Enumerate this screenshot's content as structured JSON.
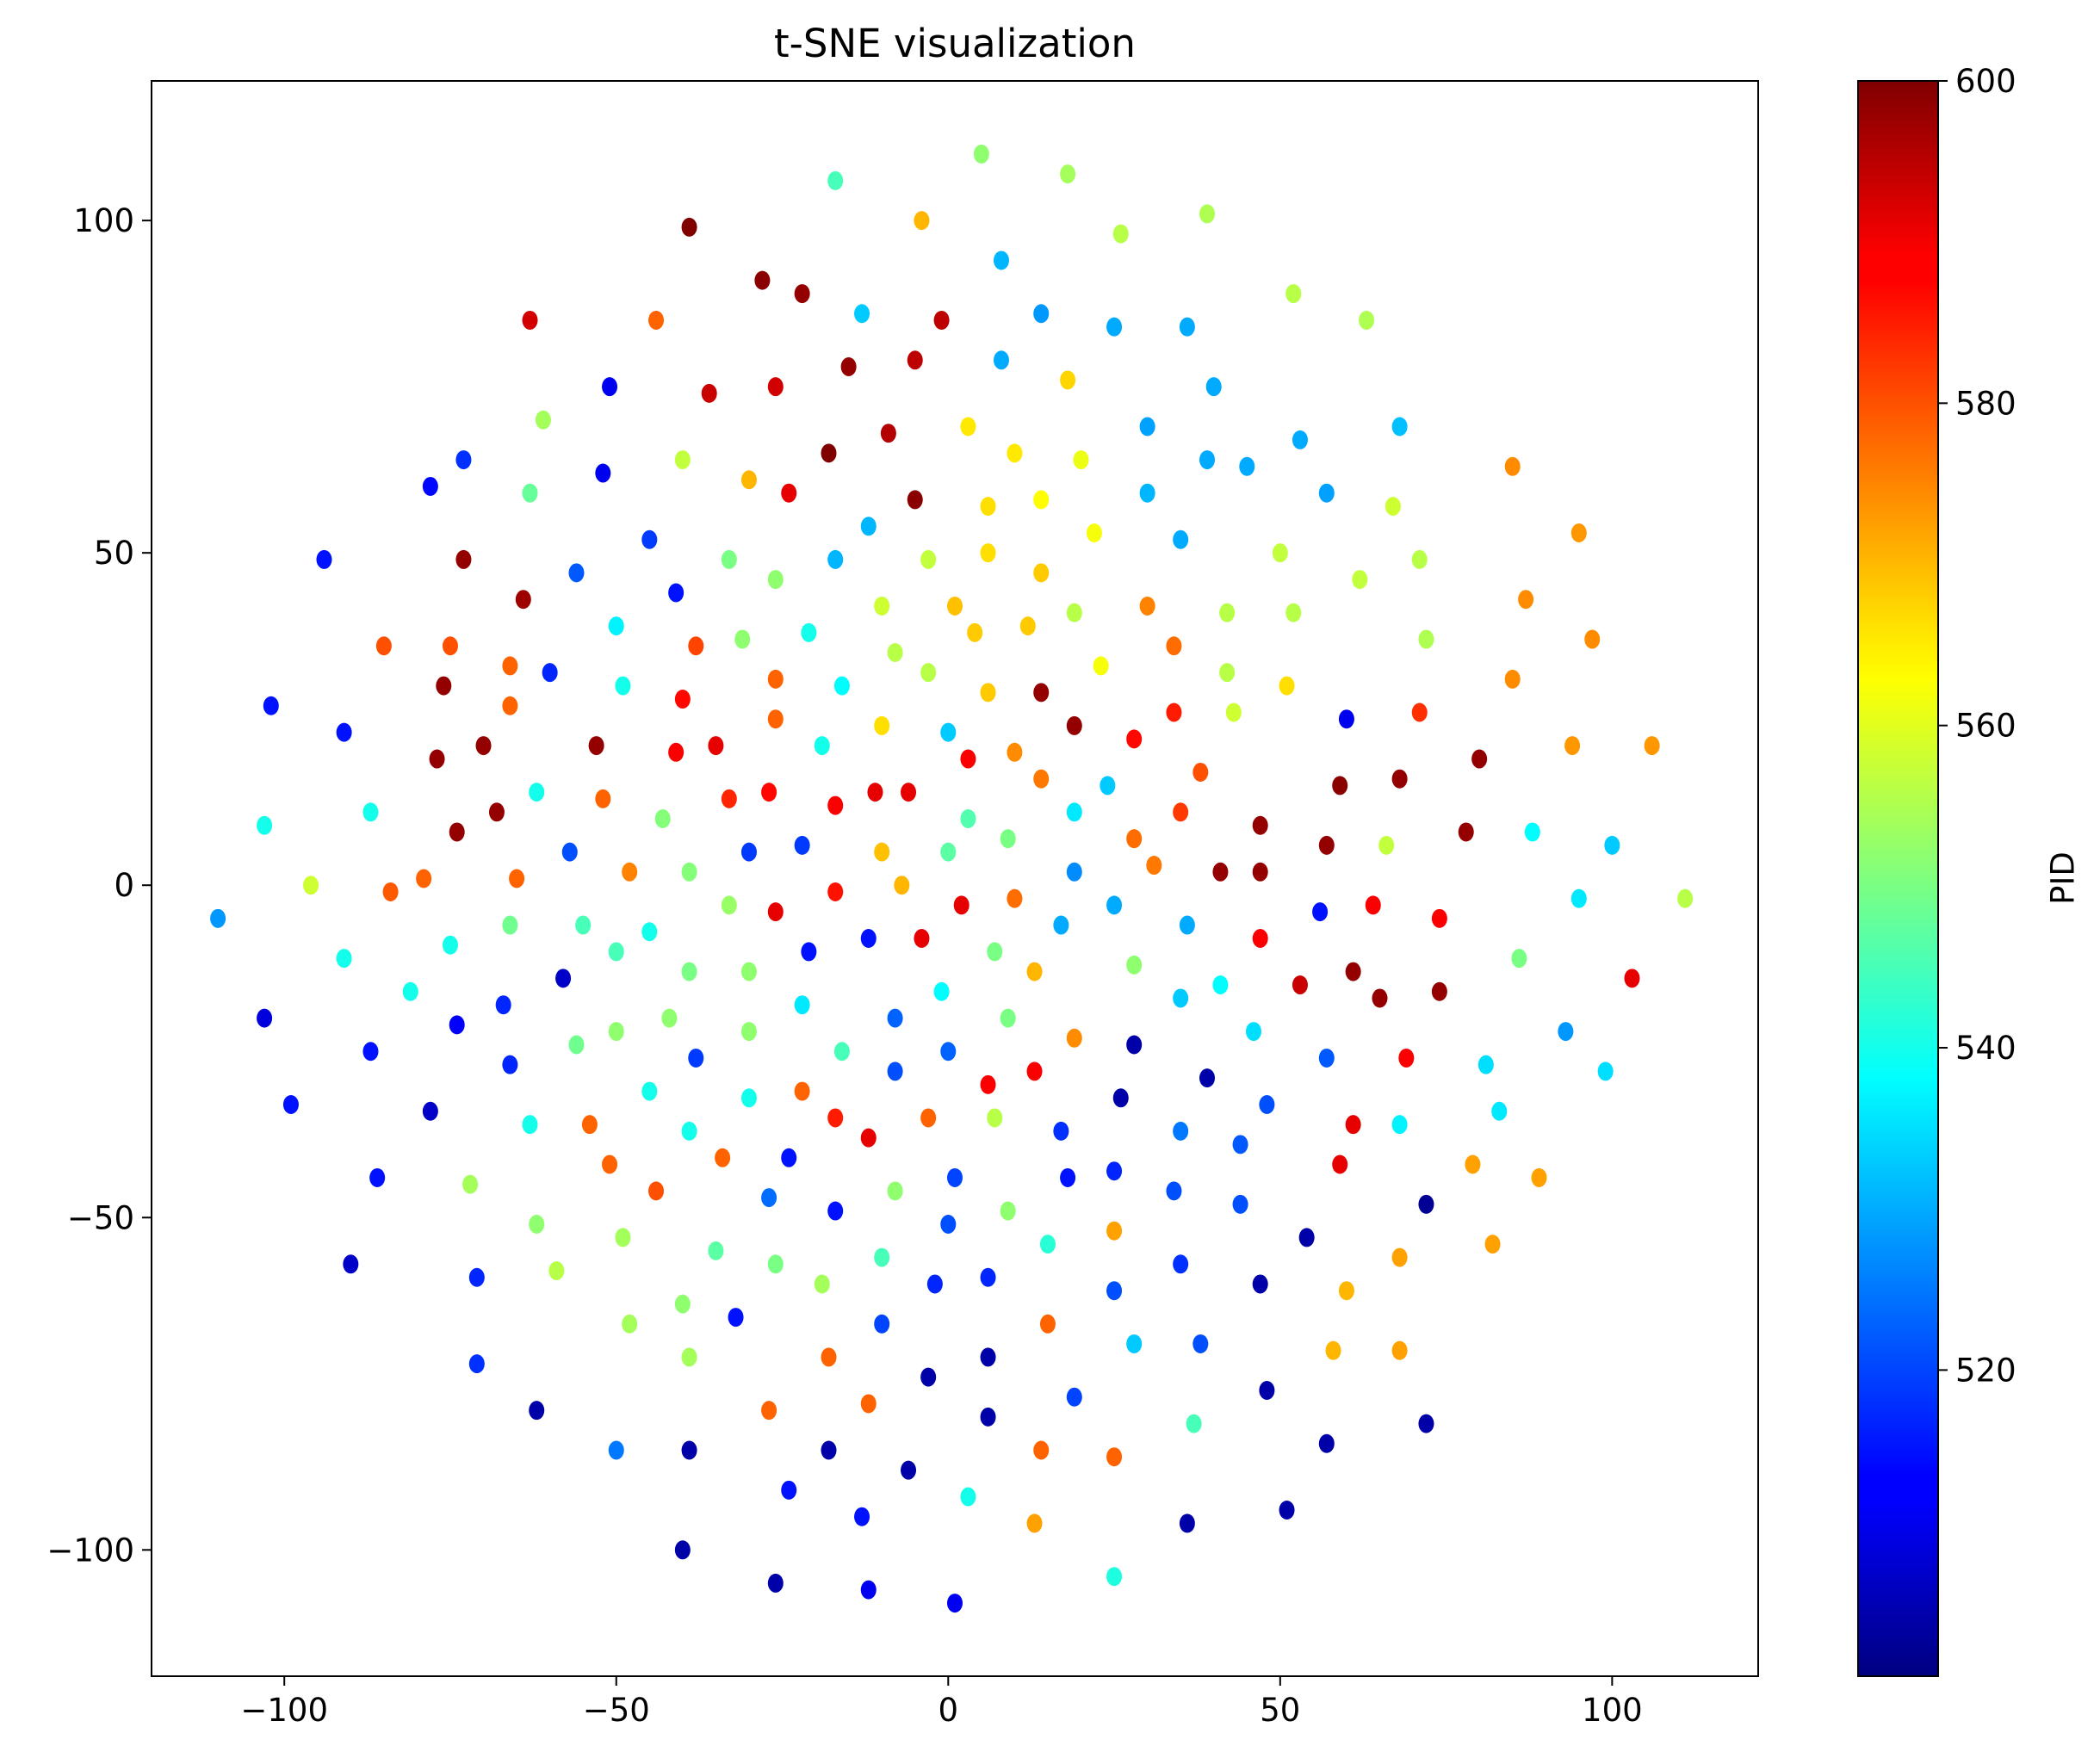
{
  "chart_data": {
    "type": "scatter",
    "title": "t-SNE visualization",
    "xlabel": "",
    "ylabel": "",
    "xlim": [
      -120,
      122
    ],
    "ylim": [
      -119,
      121
    ],
    "xticks": [
      -100,
      -50,
      0,
      50,
      100
    ],
    "yticks": [
      -100,
      -50,
      0,
      50,
      100
    ],
    "grid": false,
    "colormap": "jet",
    "colorbar": {
      "label": "PID",
      "range": [
        501,
        600
      ],
      "ticks": [
        520,
        540,
        560,
        580,
        600
      ]
    },
    "points": [
      [
        5,
        110,
        552
      ],
      [
        18,
        107,
        554
      ],
      [
        -17,
        106,
        545
      ],
      [
        39,
        101,
        555
      ],
      [
        -4,
        100,
        570
      ],
      [
        -39,
        99,
        600
      ],
      [
        26,
        98,
        556
      ],
      [
        8,
        94,
        531
      ],
      [
        -28,
        91,
        599
      ],
      [
        -22,
        89,
        598
      ],
      [
        52,
        89,
        556
      ],
      [
        -13,
        86,
        533
      ],
      [
        14,
        86,
        528
      ],
      [
        -63,
        85,
        592
      ],
      [
        -44,
        85,
        578
      ],
      [
        -1,
        85,
        594
      ],
      [
        25,
        84,
        530
      ],
      [
        36,
        84,
        530
      ],
      [
        63,
        85,
        555
      ],
      [
        -15,
        78,
        598
      ],
      [
        -5,
        79,
        594
      ],
      [
        8,
        79,
        530
      ],
      [
        18,
        76,
        567
      ],
      [
        40,
        75,
        530
      ],
      [
        -51,
        75,
        512
      ],
      [
        -36,
        74,
        593
      ],
      [
        -26,
        75,
        592
      ],
      [
        -9,
        68,
        595
      ],
      [
        30,
        69,
        529
      ],
      [
        68,
        69,
        532
      ],
      [
        -61,
        70,
        554
      ],
      [
        3,
        69,
        565
      ],
      [
        53,
        67,
        530
      ],
      [
        -73,
        64,
        518
      ],
      [
        -18,
        65,
        600
      ],
      [
        10,
        65,
        565
      ],
      [
        20,
        64,
        561
      ],
      [
        39,
        64,
        530
      ],
      [
        45,
        63,
        530
      ],
      [
        85,
        63,
        574
      ],
      [
        -78,
        60,
        514
      ],
      [
        -52,
        62,
        512
      ],
      [
        -63,
        59,
        548
      ],
      [
        -40,
        64,
        557
      ],
      [
        -30,
        61,
        570
      ],
      [
        -24,
        59,
        590
      ],
      [
        -5,
        58,
        599
      ],
      [
        6,
        57,
        566
      ],
      [
        14,
        58,
        563
      ],
      [
        30,
        59,
        531
      ],
      [
        57,
        59,
        529
      ],
      [
        67,
        57,
        558
      ],
      [
        -94,
        49,
        515
      ],
      [
        -73,
        49,
        598
      ],
      [
        -45,
        52,
        519
      ],
      [
        -33,
        49,
        550
      ],
      [
        -12,
        54,
        531
      ],
      [
        6,
        50,
        566
      ],
      [
        35,
        52,
        530
      ],
      [
        50,
        50,
        557
      ],
      [
        71,
        49,
        556
      ],
      [
        95,
        53,
        573
      ],
      [
        -56,
        47,
        522
      ],
      [
        -17,
        49,
        531
      ],
      [
        -3,
        49,
        557
      ],
      [
        14,
        47,
        568
      ],
      [
        22,
        53,
        562
      ],
      [
        -64,
        43,
        597
      ],
      [
        -41,
        44,
        515
      ],
      [
        -26,
        46,
        552
      ],
      [
        -10,
        42,
        558
      ],
      [
        1,
        42,
        569
      ],
      [
        19,
        41,
        556
      ],
      [
        30,
        42,
        575
      ],
      [
        42,
        41,
        556
      ],
      [
        52,
        41,
        556
      ],
      [
        62,
        46,
        557
      ],
      [
        -85,
        36,
        580
      ],
      [
        -75,
        36,
        580
      ],
      [
        -50,
        39,
        537
      ],
      [
        -21,
        38,
        540
      ],
      [
        -31,
        37,
        552
      ],
      [
        4,
        38,
        568
      ],
      [
        12,
        39,
        568
      ],
      [
        34,
        36,
        577
      ],
      [
        72,
        37,
        555
      ],
      [
        87,
        43,
        574
      ],
      [
        97,
        37,
        574
      ],
      [
        -66,
        33,
        578
      ],
      [
        -60,
        32,
        517
      ],
      [
        -38,
        36,
        581
      ],
      [
        -8,
        35,
        556
      ],
      [
        -3,
        32,
        556
      ],
      [
        -76,
        30,
        598
      ],
      [
        -49,
        30,
        540
      ],
      [
        -26,
        31,
        578
      ],
      [
        -16,
        30,
        538
      ],
      [
        6,
        29,
        568
      ],
      [
        14,
        29,
        598
      ],
      [
        23,
        33,
        562
      ],
      [
        42,
        32,
        556
      ],
      [
        51,
        30,
        566
      ],
      [
        -102,
        27,
        515
      ],
      [
        -66,
        27,
        578
      ],
      [
        -40,
        28,
        587
      ],
      [
        -26,
        25,
        578
      ],
      [
        -10,
        24,
        566
      ],
      [
        0,
        23,
        533
      ],
      [
        19,
        24,
        598
      ],
      [
        34,
        26,
        585
      ],
      [
        43,
        26,
        558
      ],
      [
        60,
        25,
        512
      ],
      [
        71,
        26,
        583
      ],
      [
        85,
        31,
        574
      ],
      [
        -91,
        23,
        515
      ],
      [
        -77,
        19,
        598
      ],
      [
        -70,
        21,
        598
      ],
      [
        -53,
        21,
        598
      ],
      [
        -41,
        20,
        588
      ],
      [
        -35,
        21,
        590
      ],
      [
        -19,
        21,
        540
      ],
      [
        3,
        19,
        588
      ],
      [
        10,
        20,
        574
      ],
      [
        28,
        22,
        587
      ],
      [
        -103,
        9,
        540
      ],
      [
        -87,
        11,
        540
      ],
      [
        -74,
        8,
        598
      ],
      [
        -68,
        11,
        598
      ],
      [
        -62,
        14,
        540
      ],
      [
        -52,
        13,
        578
      ],
      [
        -43,
        10,
        551
      ],
      [
        -33,
        13,
        584
      ],
      [
        -27,
        14,
        587
      ],
      [
        -17,
        12,
        588
      ],
      [
        -11,
        14,
        590
      ],
      [
        -6,
        14,
        590
      ],
      [
        3,
        10,
        546
      ],
      [
        9,
        7,
        550
      ],
      [
        14,
        16,
        576
      ],
      [
        19,
        11,
        536
      ],
      [
        24,
        15,
        533
      ],
      [
        28,
        7,
        577
      ],
      [
        35,
        11,
        582
      ],
      [
        38,
        17,
        580
      ],
      [
        47,
        9,
        598
      ],
      [
        59,
        15,
        599
      ],
      [
        68,
        16,
        598
      ],
      [
        80,
        19,
        598
      ],
      [
        94,
        21,
        573
      ],
      [
        106,
        21,
        573
      ],
      [
        -96,
        0,
        558
      ],
      [
        -79,
        1,
        578
      ],
      [
        -84,
        -1,
        579
      ],
      [
        -65,
        1,
        578
      ],
      [
        -57,
        5,
        521
      ],
      [
        -48,
        2,
        575
      ],
      [
        -39,
        2,
        551
      ],
      [
        -30,
        5,
        519
      ],
      [
        -22,
        6,
        519
      ],
      [
        -10,
        5,
        569
      ],
      [
        0,
        5,
        547
      ],
      [
        10,
        -2,
        577
      ],
      [
        19,
        2,
        527
      ],
      [
        31,
        3,
        576
      ],
      [
        41,
        2,
        598
      ],
      [
        47,
        2,
        598
      ],
      [
        57,
        6,
        598
      ],
      [
        66,
        6,
        557
      ],
      [
        78,
        8,
        598
      ],
      [
        88,
        8,
        538
      ],
      [
        100,
        6,
        533
      ],
      [
        -110,
        -5,
        528
      ],
      [
        -91,
        -11,
        540
      ],
      [
        -75,
        -9,
        540
      ],
      [
        -66,
        -6,
        549
      ],
      [
        -55,
        -6,
        545
      ],
      [
        -50,
        -10,
        545
      ],
      [
        -45,
        -7,
        540
      ],
      [
        -33,
        -3,
        553
      ],
      [
        -26,
        -4,
        590
      ],
      [
        -17,
        -1,
        586
      ],
      [
        -7,
        0,
        570
      ],
      [
        2,
        -3,
        590
      ],
      [
        17,
        -6,
        530
      ],
      [
        25,
        -3,
        530
      ],
      [
        36,
        -6,
        530
      ],
      [
        47,
        -8,
        588
      ],
      [
        56,
        -4,
        515
      ],
      [
        64,
        -3,
        588
      ],
      [
        74,
        -5,
        588
      ],
      [
        95,
        -2,
        536
      ],
      [
        111,
        -2,
        556
      ],
      [
        -103,
        -20,
        510
      ],
      [
        -81,
        -16,
        540
      ],
      [
        -74,
        -21,
        513
      ],
      [
        -67,
        -18,
        517
      ],
      [
        -58,
        -14,
        508
      ],
      [
        -56,
        -24,
        549
      ],
      [
        -50,
        -22,
        552
      ],
      [
        -42,
        -20,
        552
      ],
      [
        -39,
        -13,
        550
      ],
      [
        -30,
        -13,
        552
      ],
      [
        -21,
        -10,
        515
      ],
      [
        -12,
        -8,
        515
      ],
      [
        -4,
        -8,
        590
      ],
      [
        -1,
        -16,
        538
      ],
      [
        7,
        -10,
        550
      ],
      [
        13,
        -13,
        570
      ],
      [
        28,
        -12,
        552
      ],
      [
        35,
        -17,
        533
      ],
      [
        41,
        -15,
        538
      ],
      [
        53,
        -15,
        593
      ],
      [
        61,
        -13,
        598
      ],
      [
        65,
        -17,
        598
      ],
      [
        74,
        -16,
        598
      ],
      [
        86,
        -11,
        550
      ],
      [
        103,
        -14,
        590
      ],
      [
        -99,
        -33,
        515
      ],
      [
        -87,
        -25,
        515
      ],
      [
        -66,
        -27,
        517
      ],
      [
        -45,
        -31,
        540
      ],
      [
        -38,
        -26,
        519
      ],
      [
        -30,
        -22,
        552
      ],
      [
        -22,
        -18,
        536
      ],
      [
        -16,
        -25,
        545
      ],
      [
        -8,
        -20,
        523
      ],
      [
        0,
        -25,
        523
      ],
      [
        9,
        -20,
        550
      ],
      [
        19,
        -23,
        574
      ],
      [
        28,
        -24,
        505
      ],
      [
        39,
        -29,
        505
      ],
      [
        46,
        -22,
        535
      ],
      [
        57,
        -26,
        522
      ],
      [
        69,
        -26,
        588
      ],
      [
        81,
        -27,
        535
      ],
      [
        93,
        -22,
        528
      ],
      [
        99,
        -28,
        535
      ],
      [
        -78,
        -34,
        508
      ],
      [
        -63,
        -36,
        540
      ],
      [
        -54,
        -36,
        578
      ],
      [
        -39,
        -37,
        540
      ],
      [
        -34,
        -41,
        578
      ],
      [
        -30,
        -32,
        540
      ],
      [
        -22,
        -31,
        578
      ],
      [
        -17,
        -35,
        585
      ],
      [
        -12,
        -38,
        590
      ],
      [
        -8,
        -28,
        521
      ],
      [
        -3,
        -35,
        578
      ],
      [
        6,
        -30,
        588
      ],
      [
        7,
        -35,
        556
      ],
      [
        13,
        -28,
        588
      ],
      [
        17,
        -37,
        518
      ],
      [
        26,
        -32,
        505
      ],
      [
        35,
        -37,
        525
      ],
      [
        44,
        -39,
        522
      ],
      [
        48,
        -33,
        521
      ],
      [
        61,
        -36,
        590
      ],
      [
        68,
        -36,
        537
      ],
      [
        83,
        -34,
        536
      ],
      [
        -86,
        -44,
        515
      ],
      [
        -72,
        -45,
        554
      ],
      [
        -62,
        -51,
        552
      ],
      [
        -51,
        -42,
        578
      ],
      [
        -44,
        -46,
        580
      ],
      [
        -27,
        -47,
        524
      ],
      [
        -24,
        -41,
        515
      ],
      [
        -17,
        -49,
        515
      ],
      [
        -8,
        -46,
        552
      ],
      [
        1,
        -44,
        520
      ],
      [
        9,
        -49,
        552
      ],
      [
        18,
        -44,
        515
      ],
      [
        25,
        -43,
        517
      ],
      [
        34,
        -46,
        521
      ],
      [
        44,
        -48,
        521
      ],
      [
        59,
        -42,
        590
      ],
      [
        72,
        -48,
        503
      ],
      [
        79,
        -42,
        572
      ],
      [
        89,
        -44,
        572
      ],
      [
        -90,
        -57,
        508
      ],
      [
        -71,
        -59,
        517
      ],
      [
        -59,
        -58,
        556
      ],
      [
        -49,
        -53,
        554
      ],
      [
        -35,
        -55,
        547
      ],
      [
        -26,
        -57,
        550
      ],
      [
        -19,
        -60,
        554
      ],
      [
        -10,
        -56,
        545
      ],
      [
        0,
        -51,
        521
      ],
      [
        -2,
        -60,
        517
      ],
      [
        6,
        -59,
        517
      ],
      [
        15,
        -54,
        542
      ],
      [
        25,
        -61,
        521
      ],
      [
        25,
        -52,
        572
      ],
      [
        35,
        -57,
        518
      ],
      [
        47,
        -60,
        505
      ],
      [
        54,
        -53,
        505
      ],
      [
        60,
        -61,
        570
      ],
      [
        68,
        -56,
        572
      ],
      [
        82,
        -54,
        572
      ],
      [
        -71,
        -72,
        518
      ],
      [
        -62,
        -79,
        505
      ],
      [
        -48,
        -66,
        554
      ],
      [
        -40,
        -63,
        552
      ],
      [
        -39,
        -71,
        554
      ],
      [
        -32,
        -65,
        515
      ],
      [
        -27,
        -79,
        578
      ],
      [
        -18,
        -71,
        578
      ],
      [
        -10,
        -66,
        520
      ],
      [
        -12,
        -78,
        578
      ],
      [
        -3,
        -74,
        505
      ],
      [
        6,
        -71,
        505
      ],
      [
        6,
        -80,
        505
      ],
      [
        15,
        -66,
        578
      ],
      [
        19,
        -77,
        520
      ],
      [
        28,
        -69,
        533
      ],
      [
        38,
        -69,
        521
      ],
      [
        48,
        -76,
        505
      ],
      [
        58,
        -70,
        570
      ],
      [
        68,
        -70,
        572
      ],
      [
        -50,
        -85,
        525
      ],
      [
        -39,
        -85,
        505
      ],
      [
        -18,
        -85,
        505
      ],
      [
        -24,
        -91,
        515
      ],
      [
        -13,
        -95,
        515
      ],
      [
        -6,
        -88,
        505
      ],
      [
        3,
        -92,
        540
      ],
      [
        13,
        -96,
        572
      ],
      [
        14,
        -85,
        578
      ],
      [
        25,
        -86,
        578
      ],
      [
        37,
        -81,
        545
      ],
      [
        36,
        -96,
        505
      ],
      [
        51,
        -94,
        505
      ],
      [
        57,
        -84,
        505
      ],
      [
        72,
        -81,
        505
      ],
      [
        -40,
        -100,
        505
      ],
      [
        -26,
        -105,
        505
      ],
      [
        -12,
        -106,
        512
      ],
      [
        1,
        -108,
        512
      ],
      [
        25,
        -104,
        541
      ]
    ]
  }
}
